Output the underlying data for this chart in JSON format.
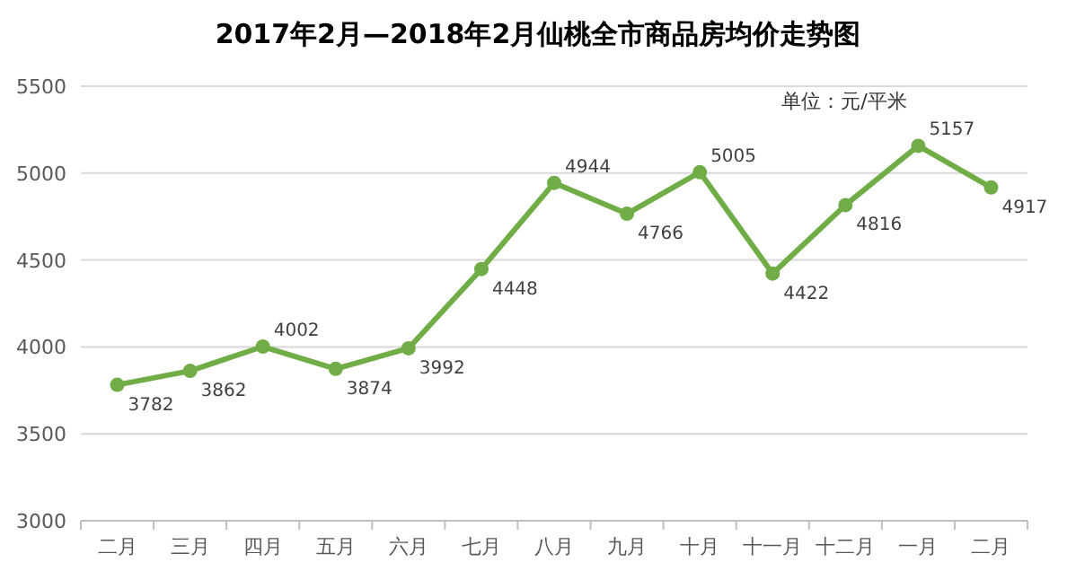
{
  "chart_data": {
    "type": "line",
    "title": "2017年2月—2018年2月仙桃全市商品房均价走势图",
    "annotations": [
      "单位：元/平米"
    ],
    "categories": [
      "二月",
      "三月",
      "四月",
      "五月",
      "六月",
      "七月",
      "八月",
      "九月",
      "十月",
      "十一月",
      "十二月",
      "一月",
      "二月"
    ],
    "series": [
      {
        "color": "#70ad47",
        "values": [
          3782,
          3862,
          4002,
          3874,
          3992,
          4448,
          4944,
          4766,
          5005,
          4422,
          4816,
          5157,
          4917
        ]
      }
    ],
    "ylim": [
      3000,
      5500
    ],
    "yticks": [
      3000,
      3500,
      4000,
      4500,
      5000,
      5500
    ],
    "grid": "y",
    "marker": "circle",
    "line_style": "solid",
    "data_labels": true
  }
}
